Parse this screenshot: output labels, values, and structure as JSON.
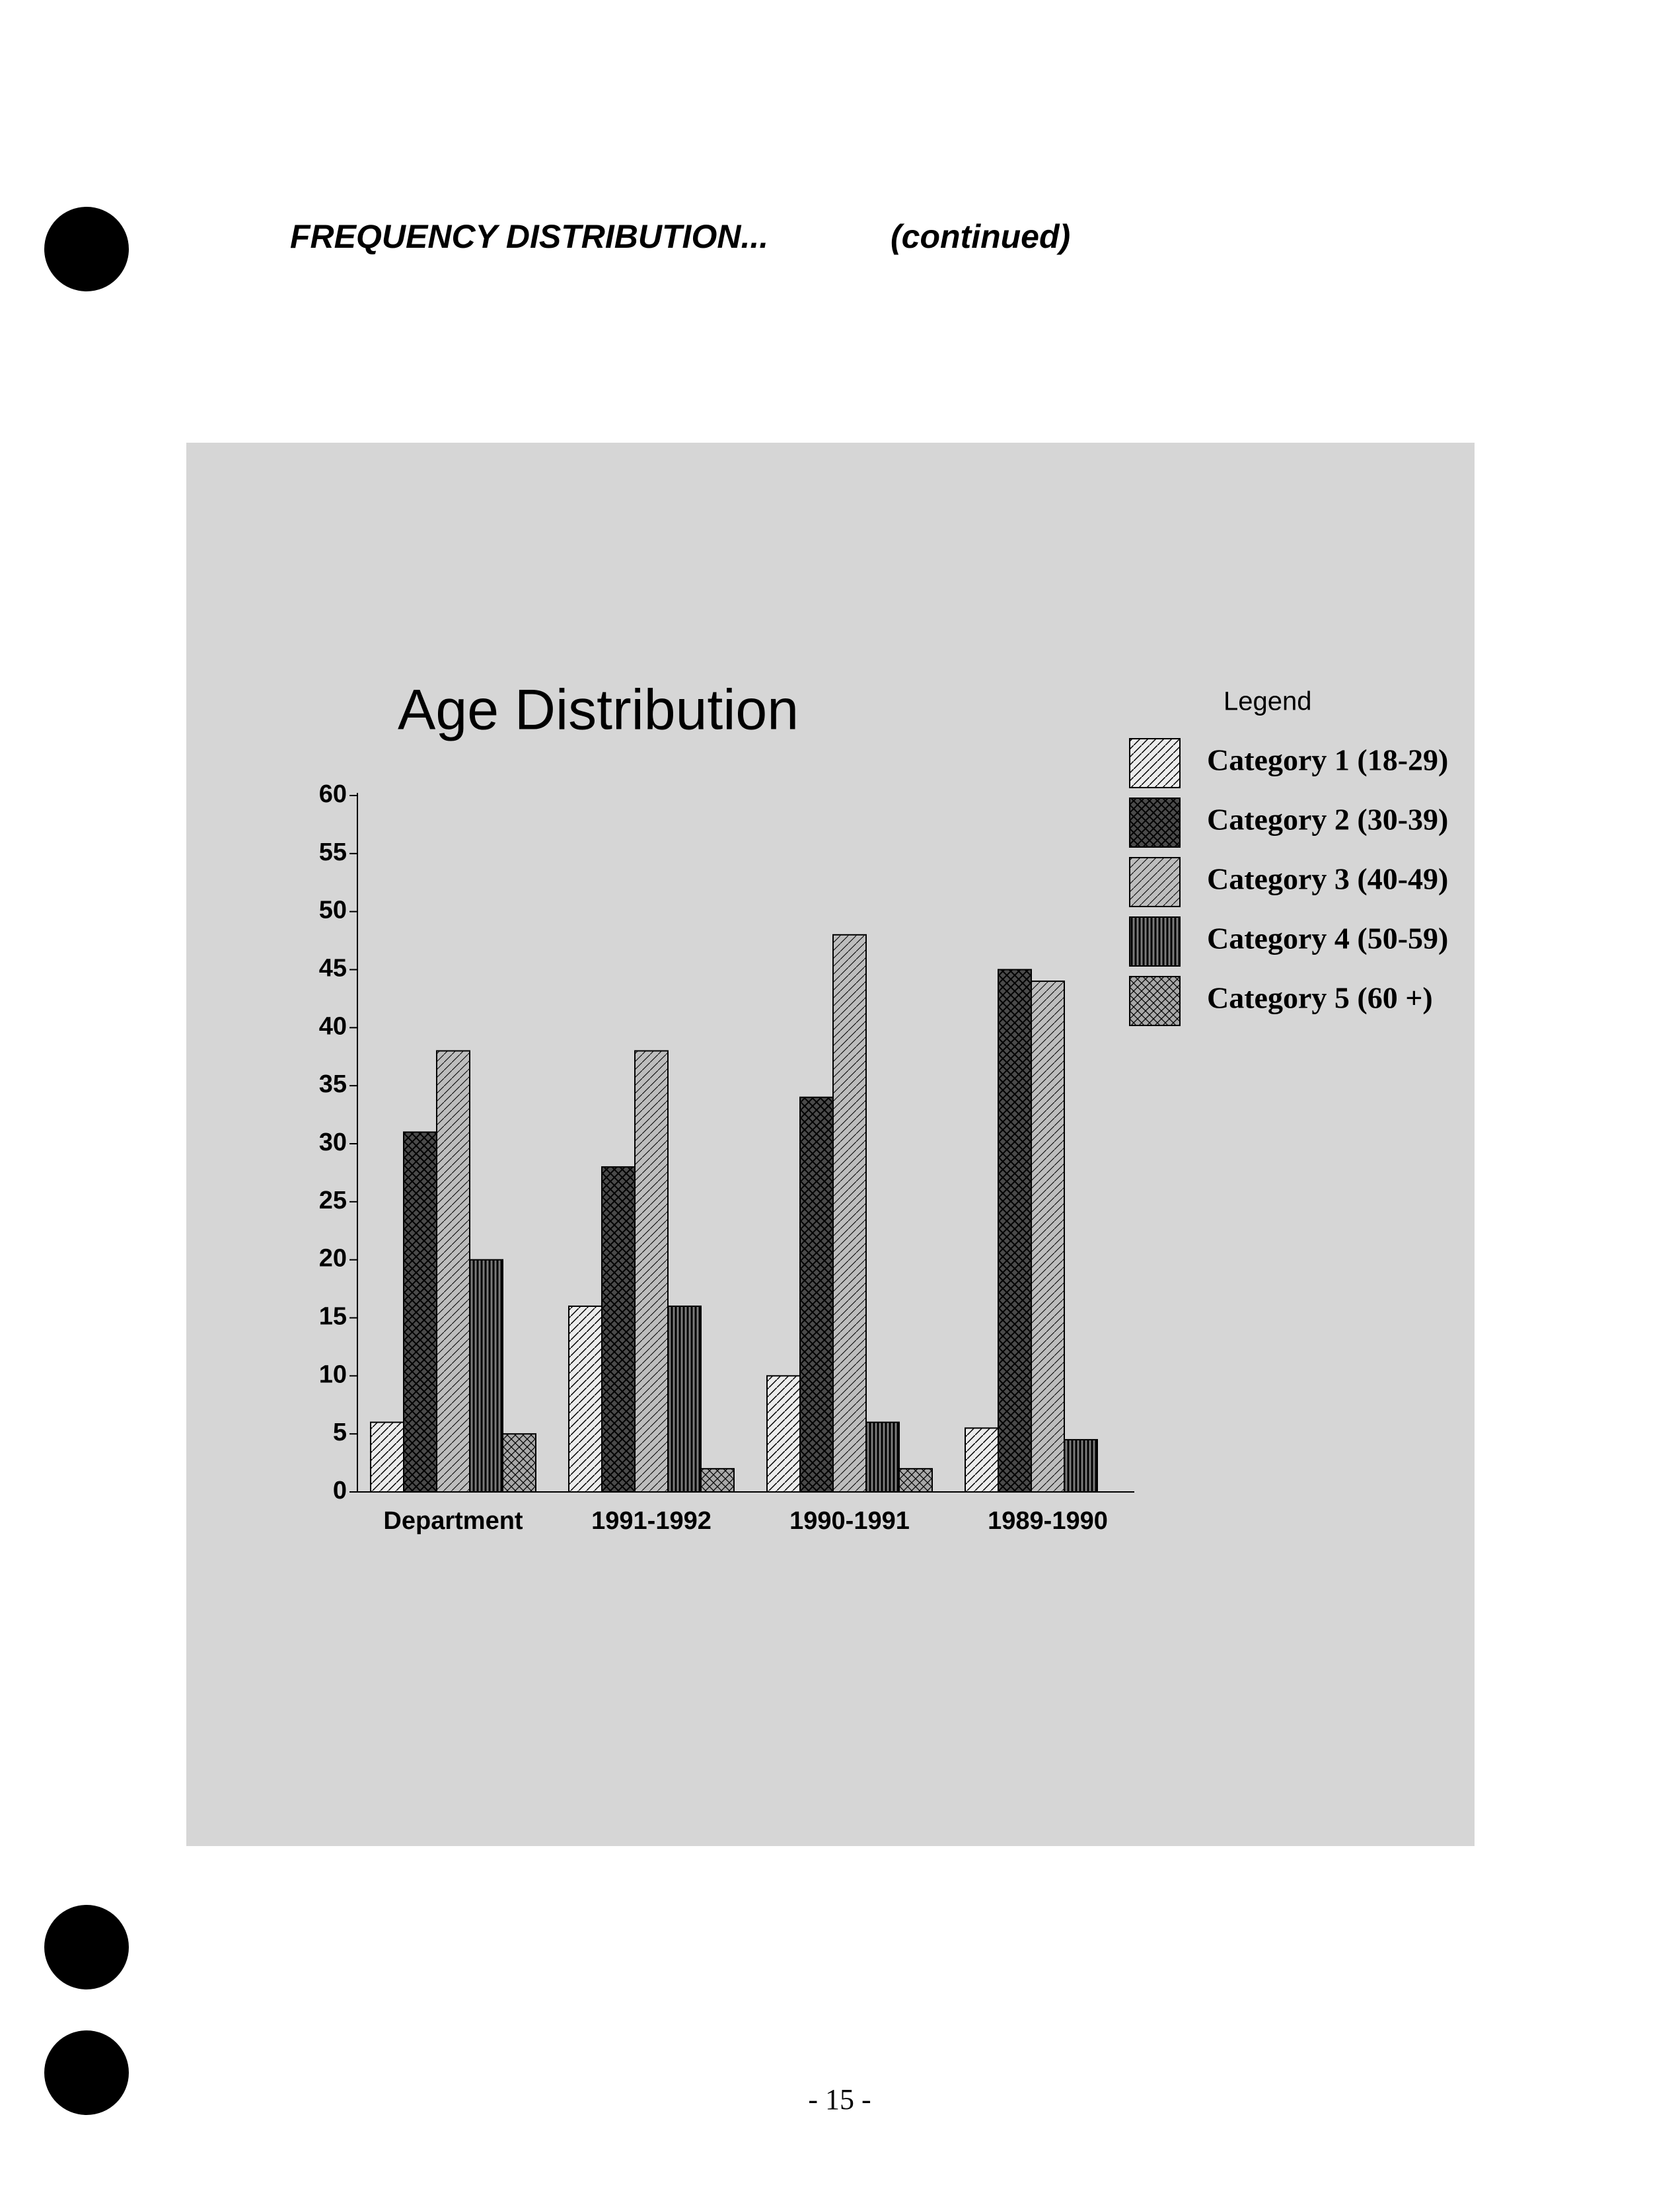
{
  "header": {
    "title": "FREQUENCY DISTRIBUTION...",
    "note": "(continued)"
  },
  "chart_data": {
    "type": "bar",
    "title": "Age Distribution",
    "legend_title": "Legend",
    "categories": [
      "Department",
      "1991-1992",
      "1990-1991",
      "1989-1990"
    ],
    "series": [
      {
        "name": "Category 1 (18-29)",
        "color": "#ececec",
        "values": [
          6,
          16,
          10,
          5.5
        ]
      },
      {
        "name": "Category 2 (30-39)",
        "color": "#4a4a4a",
        "values": [
          31,
          28,
          34,
          45
        ]
      },
      {
        "name": "Category 3 (40-49)",
        "color": "#bdbdbd",
        "values": [
          38,
          38,
          48,
          44
        ]
      },
      {
        "name": "Category 4 (50-59)",
        "color": "#7a7a7a",
        "values": [
          20,
          16,
          6,
          4.5
        ]
      },
      {
        "name": "Category 5 (60 +)",
        "color": "#a8a8a8",
        "values": [
          5,
          2,
          2,
          0
        ]
      }
    ],
    "ylim": [
      0,
      60
    ],
    "yticks": [
      0,
      5,
      10,
      15,
      20,
      25,
      30,
      35,
      40,
      45,
      50,
      55,
      60
    ],
    "grid": false
  },
  "page_number": "- 15 -"
}
